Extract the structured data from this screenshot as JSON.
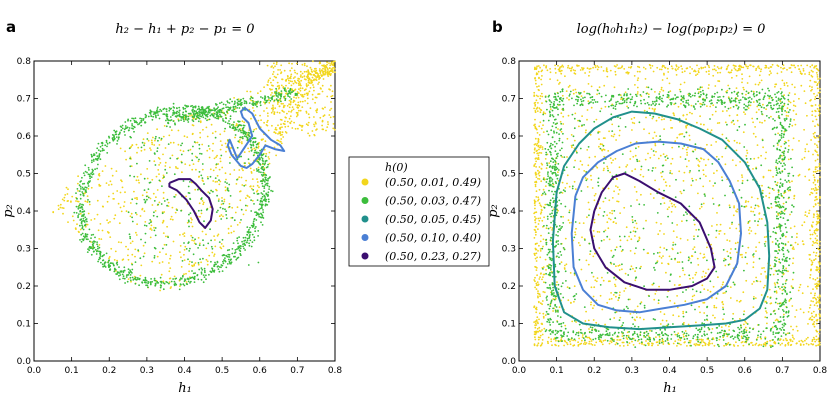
{
  "chart_data": [
    {
      "panel": "a",
      "type": "scatter",
      "title": "h_2 − h_1 + p_2 − p_1 = 0",
      "xlabel": "h_1",
      "ylabel": "p_2",
      "xlim": [
        0.0,
        0.8
      ],
      "ylim": [
        0.0,
        0.8
      ],
      "xticks": [
        "0.0",
        "0.1",
        "0.2",
        "0.3",
        "0.4",
        "0.5",
        "0.6",
        "0.7",
        "0.8"
      ],
      "yticks": [
        "0.0",
        "0.1",
        "0.2",
        "0.3",
        "0.4",
        "0.5",
        "0.6",
        "0.7",
        "0.8"
      ],
      "series": [
        {
          "name": "(0.50, 0.01, 0.49)",
          "color": "#f2d61c",
          "kind": "scatter"
        },
        {
          "name": "(0.50, 0.03, 0.47)",
          "color": "#3cbd3c",
          "kind": "scatter"
        },
        {
          "name": "(0.50, 0.10, 0.40)",
          "color": "#4a7fd4",
          "kind": "curve",
          "x": [
            0.54,
            0.56,
            0.58,
            0.57,
            0.555,
            0.55,
            0.56,
            0.58,
            0.6,
            0.63,
            0.655,
            0.665,
            0.64,
            0.615,
            0.6,
            0.58,
            0.565,
            0.55,
            0.525,
            0.515,
            0.52,
            0.54
          ],
          "y": [
            0.54,
            0.57,
            0.6,
            0.635,
            0.65,
            0.665,
            0.675,
            0.66,
            0.62,
            0.59,
            0.575,
            0.56,
            0.565,
            0.575,
            0.55,
            0.525,
            0.515,
            0.52,
            0.55,
            0.575,
            0.59,
            0.54
          ]
        },
        {
          "name": "(0.50, 0.23, 0.27)",
          "color": "#3b0f70",
          "kind": "curve",
          "x": [
            0.36,
            0.385,
            0.415,
            0.43,
            0.445,
            0.465,
            0.475,
            0.47,
            0.455,
            0.44,
            0.425,
            0.405,
            0.38,
            0.36,
            0.36
          ],
          "y": [
            0.475,
            0.485,
            0.485,
            0.472,
            0.455,
            0.435,
            0.405,
            0.375,
            0.355,
            0.37,
            0.4,
            0.43,
            0.455,
            0.465,
            0.475
          ]
        }
      ]
    },
    {
      "panel": "b",
      "type": "scatter",
      "title": "log(h_0 h_1 h_2) − log(p_0 p_1 p_2) = 0",
      "xlabel": "h_1",
      "ylabel": "p_2",
      "xlim": [
        0.0,
        0.8
      ],
      "ylim": [
        0.0,
        0.8
      ],
      "xticks": [
        "0.0",
        "0.1",
        "0.2",
        "0.3",
        "0.4",
        "0.5",
        "0.6",
        "0.7",
        "0.8"
      ],
      "yticks": [
        "0.0",
        "0.1",
        "0.2",
        "0.3",
        "0.4",
        "0.5",
        "0.6",
        "0.7",
        "0.8"
      ],
      "series": [
        {
          "name": "(0.50, 0.01, 0.49)",
          "color": "#f2d61c",
          "kind": "scatter"
        },
        {
          "name": "(0.50, 0.03, 0.47)",
          "color": "#3cbd3c",
          "kind": "scatter"
        },
        {
          "name": "(0.50, 0.05, 0.45)",
          "color": "#21908c",
          "kind": "curve",
          "x": [
            0.1,
            0.12,
            0.16,
            0.2,
            0.25,
            0.3,
            0.36,
            0.42,
            0.48,
            0.54,
            0.6,
            0.64,
            0.66,
            0.665,
            0.66,
            0.64,
            0.6,
            0.55,
            0.48,
            0.4,
            0.32,
            0.24,
            0.17,
            0.12,
            0.095,
            0.09,
            0.1
          ],
          "y": [
            0.45,
            0.52,
            0.58,
            0.62,
            0.65,
            0.665,
            0.66,
            0.645,
            0.62,
            0.59,
            0.53,
            0.46,
            0.37,
            0.28,
            0.19,
            0.14,
            0.11,
            0.1,
            0.095,
            0.09,
            0.085,
            0.09,
            0.1,
            0.13,
            0.2,
            0.32,
            0.45
          ]
        },
        {
          "name": "(0.50, 0.10, 0.40)",
          "color": "#4a7fd4",
          "kind": "curve",
          "x": [
            0.15,
            0.17,
            0.21,
            0.26,
            0.31,
            0.37,
            0.43,
            0.49,
            0.53,
            0.56,
            0.585,
            0.59,
            0.58,
            0.55,
            0.5,
            0.44,
            0.38,
            0.32,
            0.26,
            0.21,
            0.17,
            0.145,
            0.14,
            0.15
          ],
          "y": [
            0.44,
            0.49,
            0.53,
            0.56,
            0.58,
            0.585,
            0.58,
            0.565,
            0.53,
            0.48,
            0.42,
            0.34,
            0.26,
            0.2,
            0.165,
            0.15,
            0.14,
            0.13,
            0.135,
            0.15,
            0.19,
            0.25,
            0.34,
            0.44
          ]
        },
        {
          "name": "(0.50, 0.23, 0.27)",
          "color": "#3b0f70",
          "kind": "curve",
          "x": [
            0.2,
            0.22,
            0.25,
            0.28,
            0.32,
            0.37,
            0.43,
            0.48,
            0.51,
            0.52,
            0.5,
            0.46,
            0.4,
            0.34,
            0.28,
            0.23,
            0.2,
            0.19,
            0.2
          ],
          "y": [
            0.4,
            0.45,
            0.49,
            0.5,
            0.48,
            0.45,
            0.42,
            0.37,
            0.3,
            0.25,
            0.22,
            0.2,
            0.19,
            0.19,
            0.21,
            0.25,
            0.3,
            0.35,
            0.4
          ]
        }
      ]
    }
  ],
  "panels": {
    "a": {
      "letter": "a",
      "title": "h₂ − h₁ + p₂ − p₁ = 0"
    },
    "b": {
      "letter": "b",
      "title": "log(h₀h₁h₂) − log(p₀p₁p₂) = 0"
    }
  },
  "axes": {
    "xlabel": "h₁",
    "ylabel": "p₂"
  },
  "legend": {
    "title": "h(0)",
    "entries": [
      {
        "label": "(0.50,  0.01,  0.49)",
        "color": "#f2d61c"
      },
      {
        "label": "(0.50,  0.03,  0.47)",
        "color": "#3cbd3c"
      },
      {
        "label": "(0.50,  0.05,  0.45)",
        "color": "#21908c"
      },
      {
        "label": "(0.50,  0.10,  0.40)",
        "color": "#4a7fd4"
      },
      {
        "label": "(0.50,  0.23,  0.27)",
        "color": "#3b0f70"
      }
    ]
  }
}
